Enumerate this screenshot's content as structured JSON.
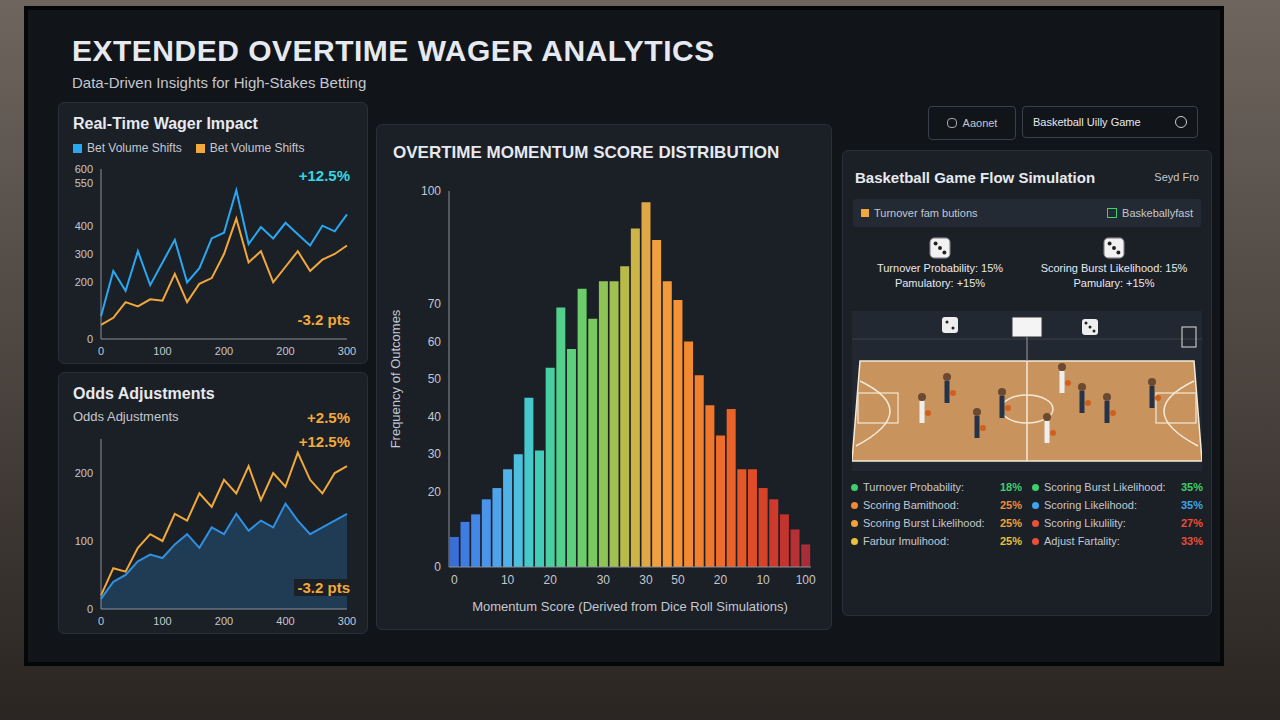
{
  "title": "EXTENDED OVERTIME WAGER ANALYTICS",
  "subtitle": "Data-Driven Insights for High-Stakes Betting",
  "controls": [
    "Aaonet",
    "Basketball Uilly Game"
  ],
  "chart_data": [
    {
      "type": "line",
      "title": "Real-Time Wager Impact",
      "legend": "top-left",
      "grid": false,
      "categories": [
        "0",
        null,
        null,
        null,
        null,
        "100",
        null,
        null,
        null,
        null,
        "200",
        null,
        null,
        null,
        null,
        "200",
        null,
        null,
        null,
        null,
        "300"
      ],
      "ylim": [
        0,
        600
      ],
      "yticks": [
        0,
        200,
        300,
        400,
        550,
        600
      ],
      "series": [
        {
          "name": "Bet Volume Shifts",
          "color": "#29a8f0",
          "values": [
            80,
            240,
            170,
            310,
            190,
            270,
            350,
            200,
            250,
            355,
            375,
            525,
            335,
            395,
            355,
            410,
            370,
            330,
            400,
            380,
            440
          ]
        },
        {
          "name": "Bet Volume Shifts",
          "color": "#f2a93b",
          "values": [
            50,
            75,
            130,
            115,
            140,
            135,
            230,
            130,
            195,
            215,
            300,
            425,
            270,
            310,
            200,
            255,
            310,
            240,
            280,
            300,
            330
          ]
        }
      ],
      "annotations": [
        {
          "text": "+12.5%",
          "color": "#36d6e0"
        },
        {
          "text": "-3.2 pts",
          "color": "#f2a93b"
        }
      ]
    },
    {
      "type": "line",
      "title": "Odds Adjustments",
      "subtitle": "Odds Adjustments",
      "grid": false,
      "categories": [
        "0",
        null,
        null,
        null,
        null,
        "100",
        null,
        null,
        null,
        null,
        "200",
        null,
        null,
        null,
        null,
        "400",
        null,
        null,
        null,
        null,
        "300"
      ],
      "ylim": [
        0,
        250
      ],
      "yticks": [
        0,
        100,
        200
      ],
      "series": [
        {
          "type": "area",
          "color": "#2f8fe0",
          "values": [
            15,
            40,
            50,
            70,
            80,
            75,
            95,
            110,
            90,
            120,
            110,
            140,
            115,
            130,
            120,
            155,
            130,
            110,
            120,
            130,
            140
          ]
        },
        {
          "type": "line",
          "color": "#f2a93b",
          "values": [
            20,
            60,
            55,
            90,
            110,
            100,
            140,
            130,
            170,
            150,
            190,
            170,
            210,
            160,
            200,
            180,
            230,
            190,
            170,
            200,
            210
          ]
        }
      ],
      "annotations": [
        {
          "text": "+2.5%",
          "color": "#f2a93b"
        },
        {
          "text": "+12.5%",
          "color": "#f2a93b"
        },
        {
          "text": "-3.2 pts",
          "color": "#f2a93b"
        }
      ]
    },
    {
      "type": "bar",
      "title": "OVERTIME MOMENTUM SCORE DISTRIBUTION",
      "x_label": "Momentum Score (Derived from Dice Roll Simulations)",
      "y_label": "Frequency of Outcomes",
      "grid": false,
      "categories": [
        "0",
        null,
        null,
        null,
        null,
        "10",
        null,
        null,
        null,
        "20",
        null,
        null,
        null,
        null,
        "30",
        null,
        null,
        null,
        "30",
        null,
        null,
        "50",
        null,
        null,
        null,
        "20",
        null,
        null,
        null,
        "10",
        null,
        null,
        null,
        "100"
      ],
      "values": [
        8,
        12,
        14,
        18,
        21,
        26,
        30,
        45,
        31,
        53,
        69,
        58,
        74,
        66,
        76,
        76,
        80,
        90,
        97,
        87,
        76,
        71,
        60,
        51,
        43,
        35,
        42,
        26,
        26,
        21,
        18,
        14,
        10,
        6
      ],
      "colors": [
        "#3b6fd8",
        "#3f7be0",
        "#4388e6",
        "#4a95ea",
        "#4fa3ec",
        "#4fb2e8",
        "#4cc0de",
        "#45c9cc",
        "#43cdb8",
        "#48cfa2",
        "#52d08c",
        "#5ecf7a",
        "#6ccd6a",
        "#7bc95e",
        "#8ec456",
        "#a2c04f",
        "#b8bb4a",
        "#cdb446",
        "#e0a844",
        "#efa03f",
        "#f39a3a",
        "#f49235",
        "#f38a31",
        "#f2812e",
        "#f0772b",
        "#ee6d29",
        "#ea6227",
        "#e55726",
        "#df4c27",
        "#d84229",
        "#cf3a2c",
        "#c4342f",
        "#b73033",
        "#a82d37"
      ],
      "ylim": [
        0,
        100
      ],
      "yticks": [
        0,
        20,
        30,
        40,
        50,
        60,
        70,
        100
      ]
    }
  ],
  "simulation": {
    "title": "Basketball Game Flow Simulation",
    "corner": "Seyd Fro",
    "filters": [
      "Turnover fam butions",
      "Baskeballyfast"
    ],
    "dice": [
      [
        "Turnover Probability: 15%",
        "Pamulatory: +15%"
      ],
      [
        "Scoring Burst Likelihood: 15%",
        "Pamulary: +15%"
      ]
    ],
    "stats": [
      {
        "label": "Turnover Probability:",
        "value": "18%",
        "color": "#3fcf6e"
      },
      {
        "label": "Scoring Burst Likelihood:",
        "value": "35%",
        "color": "#3fcf6e"
      },
      {
        "label": "Scoring Bamithood:",
        "value": "25%",
        "color": "#f08a3a"
      },
      {
        "label": "Scoring Likelihood:",
        "value": "35%",
        "color": "#3fa3f0"
      },
      {
        "label": "Scoring Burst Likelihood:",
        "value": "25%",
        "color": "#f0a23a"
      },
      {
        "label": "Scoring Likulility:",
        "value": "27%",
        "color": "#e8503a"
      },
      {
        "label": "Farbur Imulihood:",
        "value": "25%",
        "color": "#e8c23a"
      },
      {
        "label": "Adjust Fartality:",
        "value": "33%",
        "color": "#e8503a"
      }
    ]
  }
}
